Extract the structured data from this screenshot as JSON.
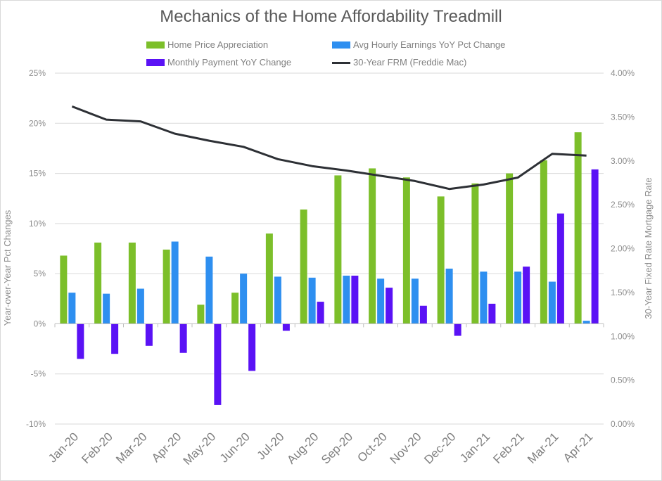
{
  "chart_data": {
    "type": "bar",
    "title": "Mechanics of the Home Affordability Treadmill",
    "categories": [
      "Jan-20",
      "Feb-20",
      "Mar-20",
      "Apr-20",
      "May-20",
      "Jun-20",
      "Jul-20",
      "Aug-20",
      "Sep-20",
      "Oct-20",
      "Nov-20",
      "Dec-20",
      "Jan-21",
      "Feb-21",
      "Mar-21",
      "Apr-21"
    ],
    "series": [
      {
        "name": "Home Price Appreciation",
        "type": "bar",
        "axis": "left",
        "color": "#7cbf2a",
        "values": [
          6.8,
          8.1,
          8.1,
          7.4,
          1.9,
          3.1,
          9.0,
          11.4,
          14.8,
          15.5,
          14.6,
          12.7,
          14.0,
          15.0,
          16.3,
          19.1
        ]
      },
      {
        "name": "Avg Hourly Earnings YoY Pct Change",
        "type": "bar",
        "axis": "left",
        "color": "#2e8ff0",
        "values": [
          3.1,
          3.0,
          3.5,
          8.2,
          6.7,
          5.0,
          4.7,
          4.6,
          4.8,
          4.5,
          4.5,
          5.5,
          5.2,
          5.2,
          4.2,
          0.3
        ]
      },
      {
        "name": "Monthly Payment YoY Change",
        "type": "bar",
        "axis": "left",
        "color": "#5a12f5",
        "values": [
          -3.5,
          -3.0,
          -2.2,
          -2.9,
          -8.1,
          -4.7,
          -0.7,
          2.2,
          4.8,
          3.6,
          1.8,
          -1.2,
          2.0,
          5.7,
          11.0,
          15.4
        ]
      },
      {
        "name": "30-Year FRM (Freddie Mac)",
        "type": "line",
        "axis": "right",
        "color": "#2d3035",
        "values": [
          3.62,
          3.47,
          3.45,
          3.31,
          3.23,
          3.16,
          3.02,
          2.94,
          2.89,
          2.83,
          2.77,
          2.68,
          2.73,
          2.81,
          3.08,
          3.06
        ]
      }
    ],
    "y_left": {
      "label": "Year-over-Year Pct Changes",
      "ylim": [
        -10,
        25
      ],
      "ticks": [
        25,
        20,
        15,
        10,
        5,
        0,
        -5,
        -10
      ],
      "tick_labels": [
        "25%",
        "20%",
        "15%",
        "10%",
        "5%",
        "0%",
        "-5%",
        "-10%"
      ]
    },
    "y_right": {
      "label": "30-Year Fixed Rate Mortgage Rate",
      "ylim": [
        0,
        4
      ],
      "ticks": [
        4,
        3.5,
        3,
        2.5,
        2,
        1.5,
        1,
        0.5,
        0
      ],
      "tick_labels": [
        "4.00%",
        "3.50%",
        "3.00%",
        "2.50%",
        "2.00%",
        "1.50%",
        "1.00%",
        "0.50%",
        "0.00%"
      ]
    },
    "grid": true,
    "legend_position": "top"
  }
}
